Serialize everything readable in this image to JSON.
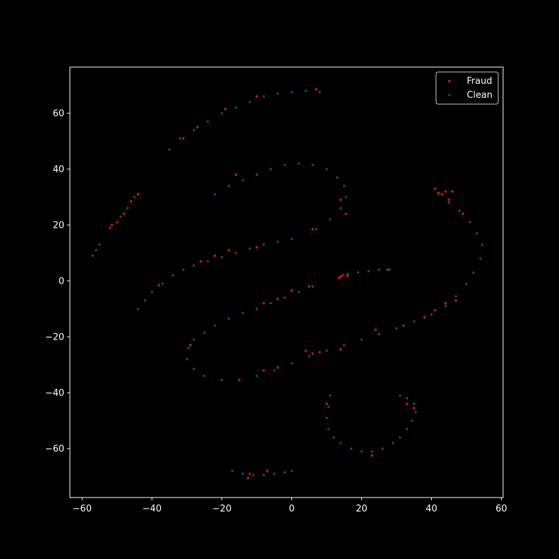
{
  "chart_data": {
    "type": "scatter",
    "title": "",
    "xlabel": "",
    "ylabel": "",
    "xlim": [
      -63.5,
      60.5
    ],
    "ylim": [
      -77.5,
      76.5
    ],
    "xticks": [
      -60,
      -40,
      -20,
      0,
      20,
      40,
      60
    ],
    "yticks": [
      -60,
      -40,
      -20,
      0,
      20,
      40,
      60
    ],
    "xtick_labels": [
      "−60",
      "−40",
      "−20",
      "0",
      "20",
      "40",
      "60"
    ],
    "ytick_labels": [
      "−60",
      "−40",
      "−20",
      "0",
      "20",
      "40",
      "60"
    ],
    "grid": false,
    "legend_position": "top-right",
    "background": "#000000",
    "axis_color": "#ffffff",
    "series": [
      {
        "name": "Clean",
        "color": "#1a7a12",
        "points": [
          [
            -35,
            47
          ],
          [
            -32,
            51
          ],
          [
            -28,
            54
          ],
          [
            -24,
            57
          ],
          [
            -20,
            60
          ],
          [
            -16,
            62
          ],
          [
            -12,
            64
          ],
          [
            -8,
            66
          ],
          [
            -4,
            67
          ],
          [
            0,
            67.5
          ],
          [
            4,
            68
          ],
          [
            8,
            67.5
          ],
          [
            -22,
            31
          ],
          [
            -18,
            34
          ],
          [
            -14,
            36
          ],
          [
            -10,
            38
          ],
          [
            -6,
            40
          ],
          [
            -2,
            41.5
          ],
          [
            2,
            42
          ],
          [
            6,
            41.5
          ],
          [
            10,
            40
          ],
          [
            13,
            37
          ],
          [
            15,
            34
          ],
          [
            15.5,
            30
          ],
          [
            14,
            26
          ],
          [
            11,
            22
          ],
          [
            7,
            18.5
          ],
          [
            -44,
            -10
          ],
          [
            -42,
            -7
          ],
          [
            -40,
            -4
          ],
          [
            -37,
            -1
          ],
          [
            -34,
            2
          ],
          [
            -31,
            4
          ],
          [
            -28,
            5.5
          ],
          [
            -24,
            7
          ],
          [
            -20,
            8.5
          ],
          [
            -16,
            10
          ],
          [
            -12,
            11.5
          ],
          [
            -8,
            13
          ],
          [
            -4,
            14
          ],
          [
            0,
            15
          ],
          [
            -45,
            30
          ],
          [
            -47,
            26
          ],
          [
            -49,
            23
          ],
          [
            -57,
            9
          ],
          [
            -56,
            11
          ],
          [
            -55,
            13
          ],
          [
            6,
            -2
          ],
          [
            2,
            -4
          ],
          [
            -2,
            -6
          ],
          [
            -6,
            -8
          ],
          [
            -10,
            -10
          ],
          [
            -14,
            -11.5
          ],
          [
            -18,
            -13.5
          ],
          [
            -22,
            -16
          ],
          [
            -25,
            -18.5
          ],
          [
            -28,
            -21
          ],
          [
            -29.5,
            -24
          ],
          [
            -30,
            -28
          ],
          [
            -28,
            -31.5
          ],
          [
            -25,
            -34
          ],
          [
            -20,
            -35.5
          ],
          [
            -15,
            -35.5
          ],
          [
            -10,
            -34
          ],
          [
            -5,
            -32
          ],
          [
            0,
            -29.5
          ],
          [
            5,
            -27
          ],
          [
            10,
            -25
          ],
          [
            15,
            -23
          ],
          [
            20,
            -21
          ],
          [
            25,
            -19
          ],
          [
            30,
            -17
          ],
          [
            35,
            -14.5
          ],
          [
            40,
            -12
          ],
          [
            44,
            -9
          ],
          [
            47,
            -5.5
          ],
          [
            50,
            -1
          ],
          [
            52,
            3
          ],
          [
            54,
            8
          ],
          [
            54.5,
            13
          ],
          [
            53,
            17
          ],
          [
            51,
            21
          ],
          [
            48,
            25
          ],
          [
            45,
            28
          ],
          [
            42,
            31
          ],
          [
            16,
            2.5
          ],
          [
            19,
            3
          ],
          [
            22,
            3.5
          ],
          [
            25,
            4
          ],
          [
            28,
            4
          ],
          [
            11,
            -41
          ],
          [
            10.5,
            -45
          ],
          [
            10,
            -49
          ],
          [
            10.5,
            -53
          ],
          [
            12,
            -56
          ],
          [
            14,
            -58
          ],
          [
            17,
            -60
          ],
          [
            20,
            -61
          ],
          [
            23,
            -61
          ],
          [
            26,
            -60
          ],
          [
            29,
            -58
          ],
          [
            31,
            -56
          ],
          [
            33,
            -53
          ],
          [
            34.5,
            -50
          ],
          [
            35.5,
            -47
          ],
          [
            35,
            -44
          ],
          [
            33,
            -42
          ],
          [
            31,
            -41
          ],
          [
            -17,
            -68
          ],
          [
            -14,
            -69
          ],
          [
            -11,
            -69.5
          ],
          [
            -8,
            -69.5
          ],
          [
            -5,
            -69
          ],
          [
            -2,
            -68.5
          ],
          [
            0,
            -68
          ]
        ]
      },
      {
        "name": "Fraud",
        "color": "#d61a0a",
        "points": [
          [
            -31,
            51
          ],
          [
            -27,
            55
          ],
          [
            -19,
            61.5
          ],
          [
            -10,
            66
          ],
          [
            7,
            68.5
          ],
          [
            -16,
            38
          ],
          [
            14,
            29
          ],
          [
            15.5,
            24
          ],
          [
            6,
            18.5
          ],
          [
            -48,
            24
          ],
          [
            -46,
            28.5
          ],
          [
            -44,
            31
          ],
          [
            -52,
            19
          ],
          [
            -51.5,
            20
          ],
          [
            -50,
            21
          ],
          [
            -38,
            -1.5
          ],
          [
            -26,
            7
          ],
          [
            -22,
            9
          ],
          [
            -18,
            11
          ],
          [
            -10,
            12
          ],
          [
            5,
            -2
          ],
          [
            0,
            -3.5
          ],
          [
            -4,
            -6.5
          ],
          [
            -8,
            -8
          ],
          [
            14,
            1.5
          ],
          [
            14.5,
            2
          ],
          [
            13.5,
            1
          ],
          [
            16,
            1.8
          ],
          [
            27.5,
            4
          ],
          [
            4,
            -25
          ],
          [
            6,
            -26
          ],
          [
            8,
            -25.5
          ],
          [
            14,
            -24.5
          ],
          [
            -4,
            -31
          ],
          [
            -8,
            -32
          ],
          [
            -15,
            -35.5
          ],
          [
            -29,
            -23
          ],
          [
            24,
            -17.5
          ],
          [
            32,
            -16
          ],
          [
            38,
            -13
          ],
          [
            41,
            -10.5
          ],
          [
            44,
            -8
          ],
          [
            47,
            -7
          ],
          [
            49,
            24
          ],
          [
            45,
            29
          ],
          [
            41,
            33
          ],
          [
            42,
            31.5
          ],
          [
            43,
            31
          ],
          [
            44,
            32
          ],
          [
            46,
            32
          ],
          [
            10,
            -44
          ],
          [
            33,
            -44
          ],
          [
            35,
            -45.5
          ],
          [
            23,
            -62.5
          ],
          [
            -12,
            -69
          ],
          [
            -12.5,
            -70.5
          ],
          [
            -7,
            -68
          ]
        ]
      }
    ]
  }
}
